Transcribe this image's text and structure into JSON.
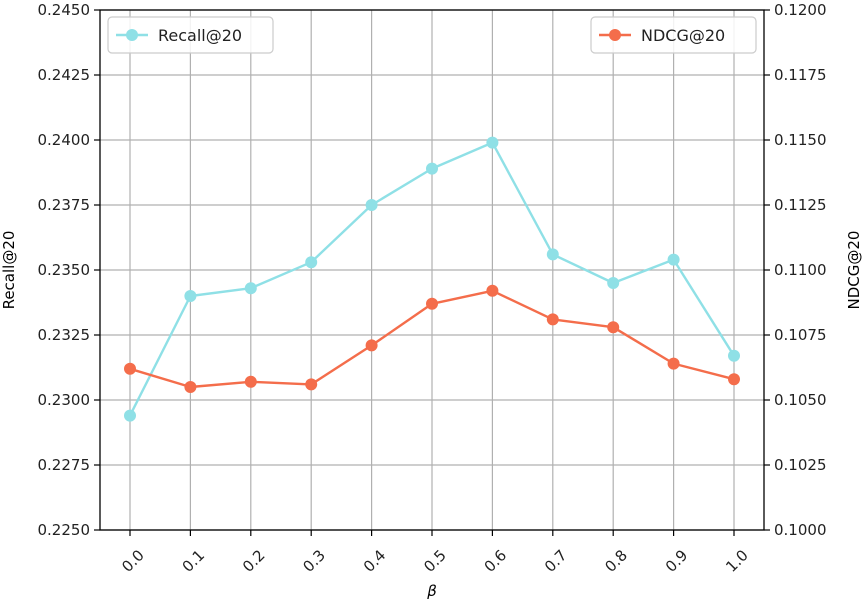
{
  "chart_data": {
    "type": "line",
    "x": [
      0.0,
      0.1,
      0.2,
      0.3,
      0.4,
      0.5,
      0.6,
      0.7,
      0.8,
      0.9,
      1.0
    ],
    "x_tick_labels": [
      "0.0",
      "0.1",
      "0.2",
      "0.3",
      "0.4",
      "0.5",
      "0.6",
      "0.7",
      "0.8",
      "0.9",
      "1.0"
    ],
    "xlabel": "β",
    "ylabel_left": "Recall@20",
    "ylabel_right": "NDCG@20",
    "ylim_left": [
      0.225,
      0.245
    ],
    "ylim_right": [
      0.1,
      0.12
    ],
    "yticks_left": [
      "0.2250",
      "0.2275",
      "0.2300",
      "0.2325",
      "0.2350",
      "0.2375",
      "0.2400",
      "0.2425",
      "0.2450"
    ],
    "yticks_right": [
      "0.1000",
      "0.1025",
      "0.1050",
      "0.1075",
      "0.1100",
      "0.1125",
      "0.1150",
      "0.1175",
      "0.1200"
    ],
    "grid": true,
    "series": [
      {
        "name": "Recall@20",
        "axis": "left",
        "color": "#8fe0e6",
        "legend": "top-left",
        "values": [
          0.2294,
          0.234,
          0.2343,
          0.2353,
          0.2375,
          0.2389,
          0.2399,
          0.2356,
          0.2345,
          0.2354,
          0.2317
        ]
      },
      {
        "name": "NDCG@20",
        "axis": "right",
        "color": "#f46d4b",
        "legend": "top-right",
        "values": [
          0.1062,
          0.1055,
          0.1057,
          0.1056,
          0.1071,
          0.1087,
          0.1092,
          0.1081,
          0.1078,
          0.1064,
          0.1058
        ]
      }
    ]
  }
}
